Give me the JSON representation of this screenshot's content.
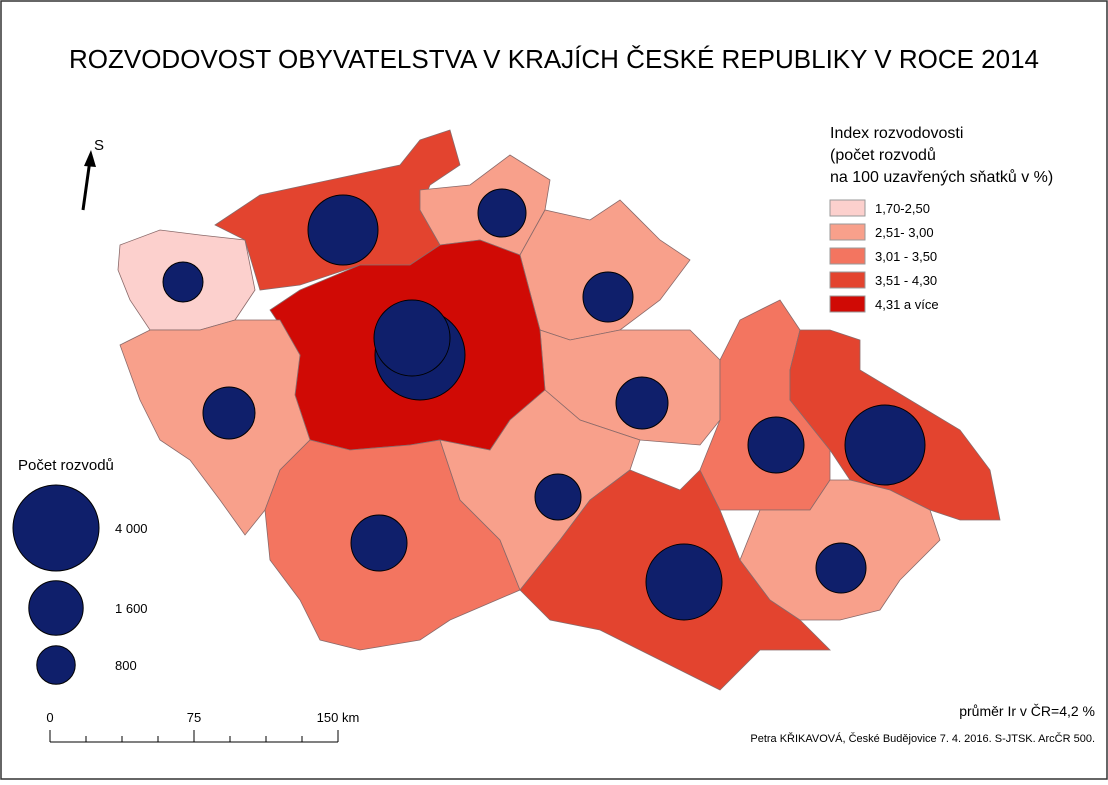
{
  "header": {
    "title": "ROZVODOVOST OBYVATELSTVA V KRAJÍCH ČESKÉ REPUBLIKY V ROCE 2014"
  },
  "north_arrow": {
    "label": "S"
  },
  "legend": {
    "title": [
      "Index rozvodovosti",
      "(počet rozvodů",
      "na 100 uzavřených sňatků v %)"
    ],
    "items": [
      {
        "label": "1,70-2,50",
        "color": "#fcd0cd"
      },
      {
        "label": "2,51- 3,00",
        "color": "#f8a08b"
      },
      {
        "label": "3,01 - 3,50",
        "color": "#f37560"
      },
      {
        "label": "3,51 - 4,30",
        "color": "#e3442f"
      },
      {
        "label": "4,31 a více",
        "color": "#d00a05"
      }
    ]
  },
  "size_legend": {
    "title": "Počet rozvodů",
    "items": [
      {
        "value": 4000,
        "label": "4 000"
      },
      {
        "value": 1600,
        "label": "1 600"
      },
      {
        "value": 800,
        "label": "800"
      }
    ]
  },
  "scale_bar": {
    "ticks": [
      0,
      75,
      {
        "value": 150,
        "label": "150 km"
      }
    ]
  },
  "footer": {
    "average": "průměr Ir v ČR=4,2 %",
    "credit": "Petra KŘIKAVOVÁ, České Budějovice 7. 4. 2016. S-JTSK. ArcČR 500."
  }
}
